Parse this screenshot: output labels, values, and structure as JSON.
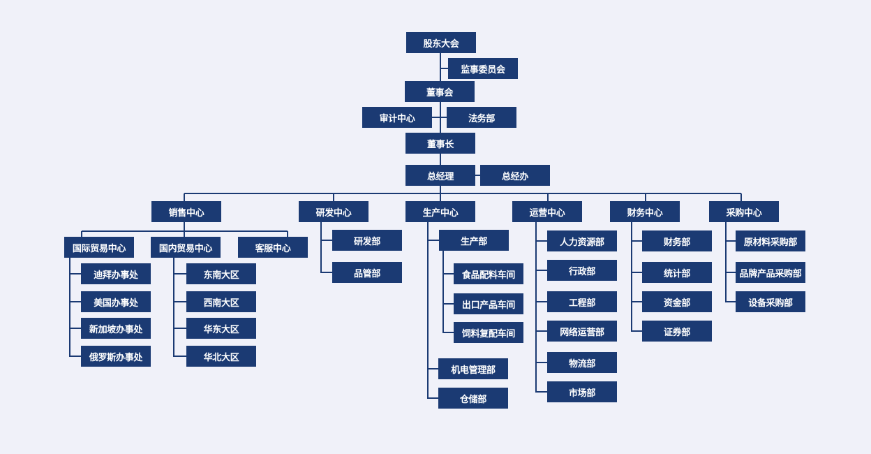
{
  "colors": {
    "background": "#f0f1f9",
    "box": "#1b3a73",
    "line": "#1b3a73",
    "text": "#ffffff"
  },
  "top": {
    "shareholders": "股东大会",
    "supervisory": "监事委员会",
    "board": "董事会",
    "audit": "审计中心",
    "legal": "法务部",
    "chairman": "董事长",
    "gm": "总经理",
    "gm_office": "总经办"
  },
  "sales": {
    "label": "销售中心",
    "international": {
      "label": "国际贸易中心",
      "children": [
        "迪拜办事处",
        "美国办事处",
        "新加坡办事处",
        "俄罗斯办事处"
      ]
    },
    "domestic": {
      "label": "国内贸易中心",
      "children": [
        "东南大区",
        "西南大区",
        "华东大区",
        "华北大区"
      ]
    },
    "service": "客服中心"
  },
  "rd": {
    "label": "研发中心",
    "children": [
      "研发部",
      "品管部"
    ]
  },
  "production": {
    "label": "生产中心",
    "dept": {
      "label": "生产部",
      "children": [
        "食品配料车间",
        "出口产品车间",
        "饲料复配车间"
      ]
    },
    "children": [
      "机电管理部",
      "仓储部"
    ]
  },
  "operations": {
    "label": "运营中心",
    "children": [
      "人力资源部",
      "行政部",
      "工程部",
      "网络运营部",
      "物流部",
      "市场部"
    ]
  },
  "finance": {
    "label": "财务中心",
    "children": [
      "财务部",
      "统计部",
      "资金部",
      "证券部"
    ]
  },
  "purchasing": {
    "label": "采购中心",
    "children": [
      "原材料采购部",
      "品牌产品采购部",
      "设备采购部"
    ]
  }
}
